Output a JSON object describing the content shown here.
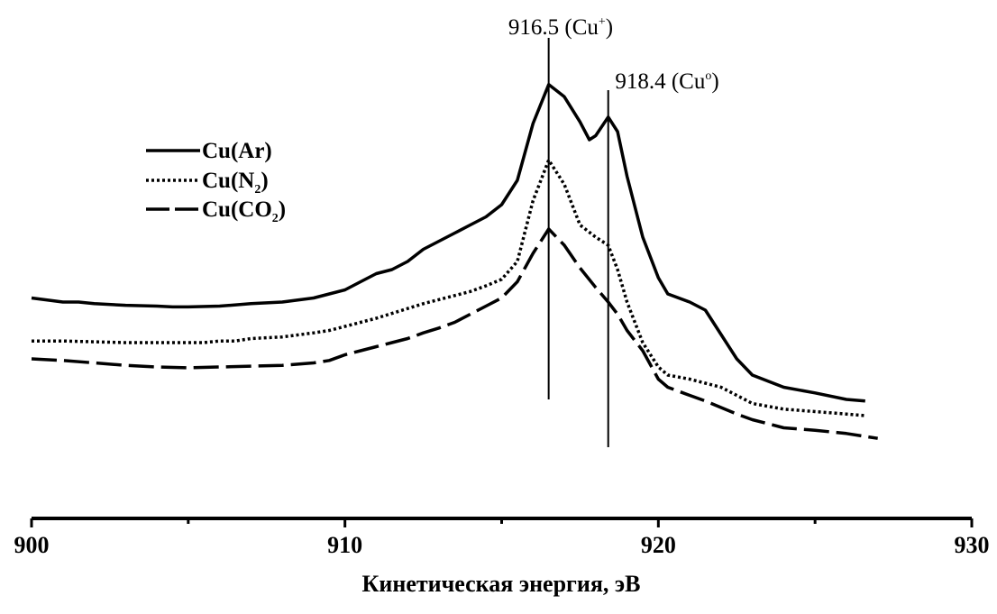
{
  "chart_data": {
    "type": "line",
    "title": "",
    "xlabel": "Кинетическая энергия, эВ",
    "ylabel": "",
    "xlim": [
      900,
      930
    ],
    "x_ticks": [
      "900",
      "910",
      "920",
      "930"
    ],
    "grid": false,
    "legend_position": "top-left",
    "legend": [
      {
        "base": "Cu(Ar)",
        "sub": "",
        "tail": "",
        "style": "solid"
      },
      {
        "base": "Cu(N",
        "sub": "2",
        "tail": ")",
        "style": "dotted"
      },
      {
        "base": "Cu(CO",
        "sub": "2",
        "tail": ")",
        "style": "dashed"
      }
    ],
    "annotations": [
      {
        "x": 916.5,
        "base": "916.5 (Cu",
        "sup": "+",
        "tail": ")"
      },
      {
        "x": 918.4,
        "base": "918.4 (Cu",
        "sup": "o",
        "tail": ")"
      }
    ],
    "series": [
      {
        "style": "solid",
        "x": [
          900,
          901,
          901.5,
          902,
          903,
          904,
          904.5,
          905,
          906,
          907,
          908,
          909,
          909.5,
          910,
          910.5,
          911,
          911.5,
          912,
          912.5,
          913,
          913.5,
          914,
          914.5,
          915,
          915.5,
          916,
          916.5,
          917,
          917.5,
          917.8,
          918,
          918.4,
          918.7,
          919,
          919.5,
          920,
          920.3,
          921,
          921.5,
          922,
          922.5,
          923,
          924,
          925,
          926,
          926.6
        ],
        "y": [
          205,
          200,
          200,
          198,
          196,
          195,
          194,
          194,
          195,
          198,
          200,
          205,
          210,
          215,
          225,
          235,
          240,
          250,
          265,
          275,
          285,
          295,
          305,
          320,
          350,
          420,
          468,
          453,
          422,
          400,
          405,
          428,
          410,
          355,
          280,
          230,
          210,
          200,
          190,
          160,
          130,
          110,
          95,
          88,
          80,
          78
        ]
      },
      {
        "style": "dotted",
        "x": [
          900,
          901,
          902,
          903,
          904,
          905,
          905.5,
          906,
          906.5,
          907,
          908,
          909,
          909.5,
          910,
          910.5,
          911,
          911.5,
          912,
          912.5,
          913,
          913.5,
          914,
          914.5,
          915,
          915.5,
          916,
          916.5,
          917,
          917.5,
          918,
          918.4,
          918.7,
          919,
          919.5,
          920,
          920.3,
          921,
          921.5,
          922,
          922.5,
          923,
          924,
          925,
          926,
          926.6
        ],
        "y": [
          152,
          152,
          151,
          150,
          150,
          150,
          150,
          152,
          152,
          155,
          157,
          162,
          165,
          170,
          175,
          180,
          186,
          192,
          198,
          203,
          208,
          213,
          220,
          228,
          250,
          325,
          375,
          345,
          295,
          280,
          270,
          240,
          200,
          150,
          120,
          110,
          105,
          100,
          95,
          85,
          75,
          68,
          65,
          62,
          60
        ]
      },
      {
        "style": "dashed",
        "x": [
          900,
          901,
          902,
          903,
          904,
          905,
          906,
          907,
          908,
          909,
          909.5,
          910,
          910.5,
          911,
          911.5,
          912,
          912.5,
          913,
          913.5,
          914,
          914.5,
          915,
          915.5,
          916,
          916.5,
          917,
          917.5,
          918,
          918.4,
          918.7,
          919,
          919.5,
          920,
          920.3,
          921,
          921.5,
          922,
          922.5,
          923,
          924,
          925,
          926,
          927
        ],
        "y": [
          130,
          128,
          125,
          122,
          120,
          119,
          120,
          121,
          122,
          125,
          128,
          135,
          140,
          145,
          150,
          155,
          162,
          168,
          175,
          185,
          195,
          205,
          225,
          260,
          290,
          270,
          242,
          218,
          200,
          185,
          165,
          140,
          105,
          95,
          85,
          78,
          70,
          62,
          55,
          45,
          42,
          38,
          32
        ]
      }
    ]
  }
}
